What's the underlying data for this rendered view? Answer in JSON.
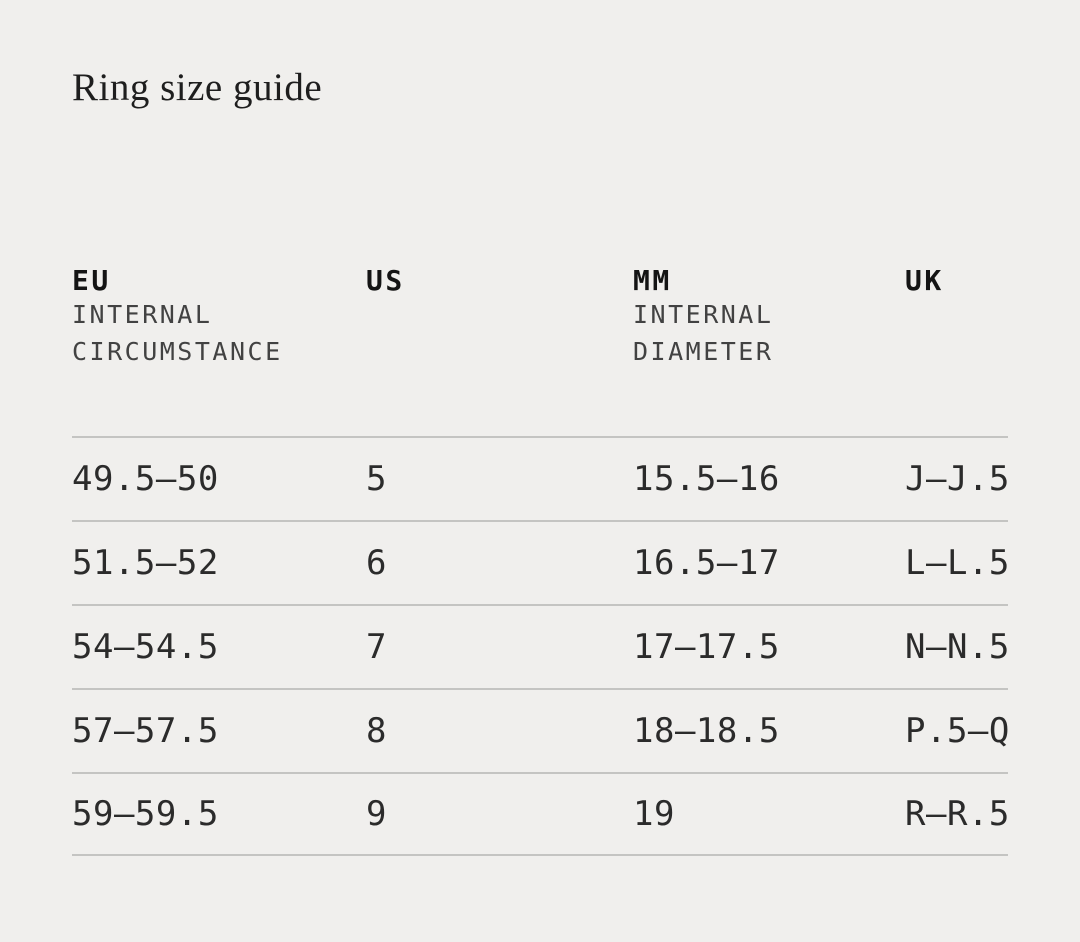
{
  "page": {
    "title": "Ring size guide",
    "background_color": "#f0efed",
    "divider_color": "#c4c4c2",
    "heading_color": "#1e1e1e",
    "header_label_color": "#141414",
    "header_sublabel_color": "#424242",
    "cell_text_color": "#2b2b2b"
  },
  "table": {
    "columns": [
      {
        "label": "EU",
        "sublines": [
          "INTERNAL",
          "CIRCUMSTANCE"
        ]
      },
      {
        "label": "US",
        "sublines": []
      },
      {
        "label": "MM",
        "sublines": [
          "INTERNAL",
          "DIAMETER"
        ]
      },
      {
        "label": "UK",
        "sublines": []
      }
    ],
    "rows": [
      [
        "49.5—50",
        "5",
        "15.5—16",
        "J—J.5"
      ],
      [
        "51.5—52",
        "6",
        "16.5—17",
        "L—L.5"
      ],
      [
        "54—54.5",
        "7",
        "17—17.5",
        "N—N.5"
      ],
      [
        "57—57.5",
        "8",
        "18—18.5",
        "P.5—Q"
      ],
      [
        "59—59.5",
        "9",
        "19",
        "R—R.5"
      ]
    ]
  }
}
